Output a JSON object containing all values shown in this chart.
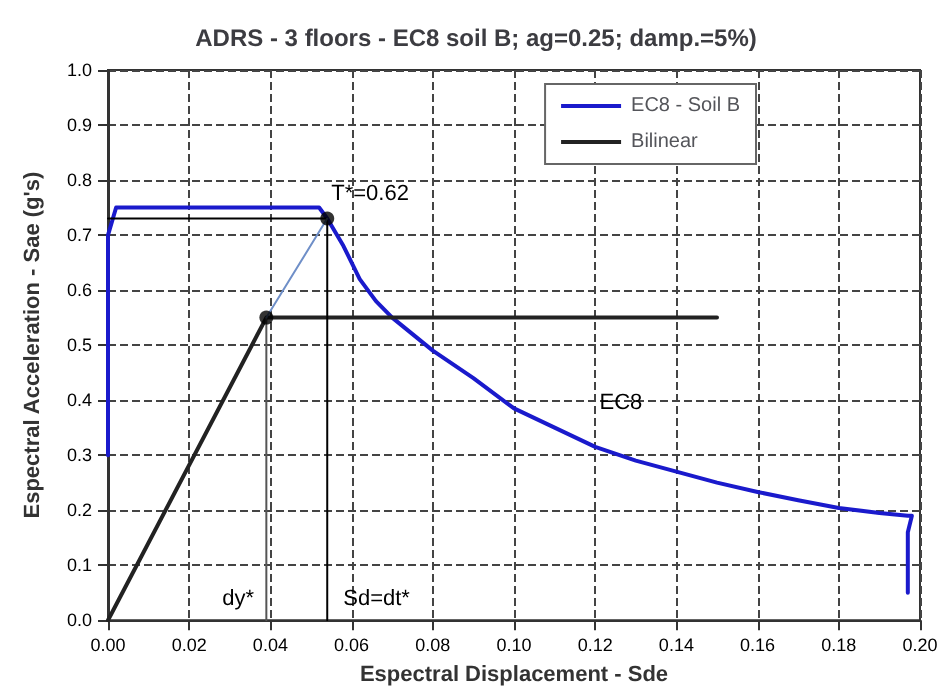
{
  "chart_data": {
    "type": "line",
    "title": "ADRS - 3 floors - EC8 soil B; ag=0.25; damp.=5%)",
    "xlabel": "Espectral Displacement - Sde",
    "ylabel": "Espectral Acceleration - Sae (g's)",
    "xlim": [
      0,
      0.2
    ],
    "ylim": [
      0,
      1.0
    ],
    "xticks": [
      {
        "value": 0,
        "label": "0.00"
      },
      {
        "value": 0.02,
        "label": "0.02"
      },
      {
        "value": 0.04,
        "label": "0.04"
      },
      {
        "value": 0.06,
        "label": "0.06"
      },
      {
        "value": 0.08,
        "label": "0.08"
      },
      {
        "value": 0.1,
        "label": "0.10"
      },
      {
        "value": 0.12,
        "label": "0.12"
      },
      {
        "value": 0.14,
        "label": "0.14"
      },
      {
        "value": 0.16,
        "label": "0.16"
      },
      {
        "value": 0.18,
        "label": "0.18"
      },
      {
        "value": 0.2,
        "label": "0.20"
      }
    ],
    "yticks": [
      {
        "value": 0,
        "label": "0.0"
      },
      {
        "value": 0.1,
        "label": "0.1"
      },
      {
        "value": 0.2,
        "label": "0.2"
      },
      {
        "value": 0.3,
        "label": "0.3"
      },
      {
        "value": 0.4,
        "label": "0.4"
      },
      {
        "value": 0.5,
        "label": "0.5"
      },
      {
        "value": 0.6,
        "label": "0.6"
      },
      {
        "value": 0.7,
        "label": "0.7"
      },
      {
        "value": 0.8,
        "label": "0.8"
      },
      {
        "value": 0.9,
        "label": "0.9"
      },
      {
        "value": 1.0,
        "label": "1.0"
      }
    ],
    "grid": true,
    "legend": "top right",
    "marker": "none",
    "line_style": "solid",
    "series": [
      {
        "name": "EC8 - Soil B",
        "color": "#1a1acc",
        "x": [
          0,
          0,
          0.002,
          0.052,
          0.054,
          0.058,
          0.062,
          0.066,
          0.07,
          0.075,
          0.08,
          0.09,
          0.1,
          0.11,
          0.12,
          0.13,
          0.14,
          0.15,
          0.16,
          0.17,
          0.18,
          0.19,
          0.197,
          0.198,
          0.197,
          0.197
        ],
        "values": [
          0.3,
          0.7,
          0.75,
          0.75,
          0.73,
          0.68,
          0.62,
          0.58,
          0.55,
          0.52,
          0.49,
          0.44,
          0.385,
          0.35,
          0.315,
          0.29,
          0.27,
          0.25,
          0.233,
          0.218,
          0.204,
          0.195,
          0.19,
          0.19,
          0.16,
          0.05
        ]
      },
      {
        "name": "Bilinear",
        "color": "#222222",
        "x": [
          0,
          0.039,
          0.15
        ],
        "values": [
          0,
          0.55,
          0.55
        ]
      },
      {
        "color": "#000000",
        "x": [
          0,
          0.054,
          0.054
        ],
        "values": [
          0.73,
          0.73,
          0
        ]
      },
      {
        "color": "#555555",
        "x": [
          0.039,
          0.039
        ],
        "values": [
          0.55,
          0
        ]
      },
      {
        "color": "#6f8fc8",
        "x": [
          0.039,
          0.054
        ],
        "values": [
          0.55,
          0.73
        ]
      },
      {
        "type": "scatter",
        "marker": "circle",
        "color": "#000000",
        "x": [
          0.039,
          0.054
        ],
        "values": [
          0.55,
          0.73
        ]
      }
    ],
    "annotations": [
      {
        "text": "T*=0.62",
        "x": 0.054,
        "y": 0.73
      },
      {
        "text": "dy*",
        "x": 0.039,
        "y": 0.0
      },
      {
        "text": "Sd=dt*",
        "x": 0.054,
        "y": 0.0
      },
      {
        "text": "EC8",
        "x": 0.125,
        "y": 0.32
      }
    ]
  }
}
